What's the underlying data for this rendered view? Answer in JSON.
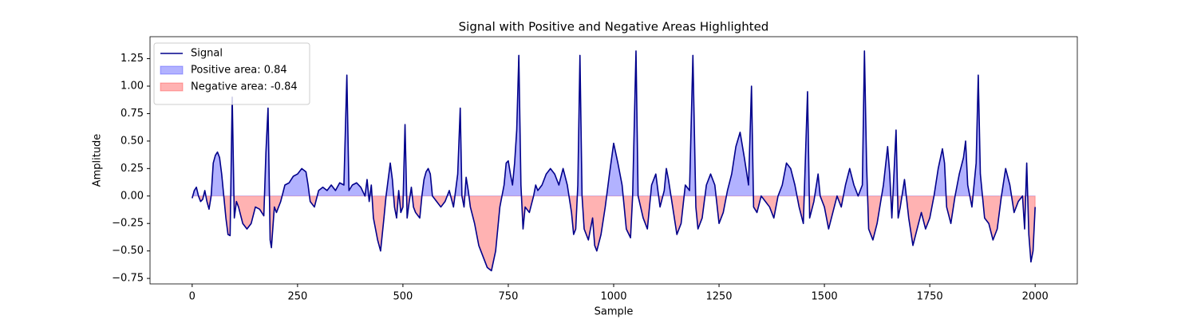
{
  "chart_data": {
    "type": "area_line",
    "title": "Signal with Positive and Negative Areas Highlighted",
    "xlabel": "Sample",
    "ylabel": "Amplitude",
    "xlim": [
      -100,
      2100
    ],
    "ylim": [
      -0.8,
      1.45
    ],
    "xticks": [
      0,
      250,
      500,
      750,
      1000,
      1250,
      1500,
      1750,
      2000
    ],
    "yticks": [
      {
        "value": -0.75,
        "label": "−0.75"
      },
      {
        "value": -0.5,
        "label": "−0.50"
      },
      {
        "value": -0.25,
        "label": "−0.25"
      },
      {
        "value": 0,
        "label": "0.00"
      },
      0.25,
      {
        "value": 0.5,
        "label": "0.50"
      },
      0.75,
      {
        "value": 1,
        "label": "1.00"
      },
      1.25
    ],
    "legend": "upper left",
    "series": [
      {
        "name": "Signal",
        "color": "#00008b",
        "x": [
          0,
          5,
          10,
          15,
          20,
          25,
          30,
          35,
          40,
          45,
          50,
          55,
          60,
          65,
          70,
          75,
          80,
          85,
          90,
          95,
          100,
          105,
          110,
          120,
          130,
          140,
          150,
          160,
          170,
          175,
          180,
          185,
          188,
          195,
          200,
          210,
          220,
          230,
          240,
          250,
          260,
          270,
          275,
          280,
          290,
          300,
          310,
          320,
          330,
          340,
          350,
          360,
          367,
          372,
          380,
          390,
          400,
          410,
          415,
          420,
          425,
          430,
          440,
          447,
          455,
          460,
          465,
          470,
          475,
          480,
          485,
          490,
          495,
          500,
          505,
          510,
          515,
          520,
          525,
          530,
          540,
          545,
          550,
          555,
          560,
          565,
          570,
          580,
          590,
          600,
          610,
          620,
          630,
          636,
          640,
          645,
          650,
          655,
          660,
          670,
          680,
          690,
          700,
          710,
          720,
          725,
          730,
          740,
          745,
          750,
          755,
          760,
          765,
          770,
          775,
          780,
          785,
          790,
          800,
          810,
          815,
          820,
          830,
          840,
          850,
          860,
          870,
          880,
          890,
          900,
          905,
          910,
          915,
          920,
          925,
          930,
          940,
          950,
          955,
          960,
          970,
          980,
          990,
          1000,
          1010,
          1020,
          1030,
          1040,
          1045,
          1053,
          1058,
          1070,
          1080,
          1090,
          1100,
          1110,
          1120,
          1125,
          1130,
          1140,
          1150,
          1160,
          1170,
          1180,
          1188,
          1195,
          1200,
          1210,
          1220,
          1230,
          1240,
          1250,
          1260,
          1270,
          1280,
          1290,
          1300,
          1310,
          1320,
          1327,
          1332,
          1340,
          1350,
          1360,
          1370,
          1380,
          1390,
          1400,
          1410,
          1420,
          1430,
          1440,
          1450,
          1460,
          1465,
          1475,
          1485,
          1490,
          1500,
          1510,
          1520,
          1530,
          1540,
          1550,
          1560,
          1570,
          1580,
          1590,
          1595,
          1600,
          1605,
          1615,
          1625,
          1640,
          1650,
          1655,
          1660,
          1670,
          1675,
          1680,
          1690,
          1700,
          1710,
          1720,
          1730,
          1740,
          1750,
          1760,
          1770,
          1780,
          1785,
          1790,
          1800,
          1810,
          1820,
          1830,
          1835,
          1840,
          1850,
          1860,
          1865,
          1870,
          1880,
          1890,
          1900,
          1910,
          1920,
          1930,
          1940,
          1950,
          1960,
          1970,
          1975,
          1980,
          1985,
          1990,
          1995,
          2000
        ],
        "values": [
          -0.02,
          0.05,
          0.08,
          0.0,
          -0.05,
          -0.03,
          0.05,
          -0.05,
          -0.12,
          0.0,
          0.3,
          0.37,
          0.4,
          0.35,
          0.2,
          0.0,
          -0.2,
          -0.35,
          -0.36,
          0.9,
          -0.2,
          -0.05,
          -0.1,
          -0.25,
          -0.3,
          -0.25,
          -0.1,
          -0.12,
          -0.18,
          0.4,
          0.8,
          -0.4,
          -0.47,
          -0.1,
          -0.15,
          -0.05,
          0.1,
          0.12,
          0.18,
          0.2,
          0.25,
          0.22,
          0.1,
          -0.05,
          -0.1,
          0.05,
          0.08,
          0.05,
          0.1,
          0.05,
          0.12,
          0.1,
          1.1,
          0.05,
          0.1,
          0.12,
          0.08,
          0.0,
          0.15,
          -0.05,
          0.1,
          -0.2,
          -0.4,
          -0.5,
          -0.2,
          0.0,
          0.15,
          0.3,
          0.15,
          -0.1,
          -0.2,
          0.05,
          -0.15,
          -0.1,
          0.65,
          -0.2,
          -0.05,
          0.08,
          -0.1,
          -0.15,
          -0.2,
          0.0,
          0.15,
          0.22,
          0.25,
          0.2,
          0.0,
          -0.05,
          -0.1,
          -0.05,
          0.05,
          -0.1,
          0.2,
          0.8,
          0.0,
          -0.1,
          0.17,
          0.05,
          -0.1,
          -0.25,
          -0.45,
          -0.55,
          -0.65,
          -0.68,
          -0.5,
          -0.3,
          -0.1,
          0.1,
          0.3,
          0.32,
          0.2,
          0.1,
          0.3,
          0.6,
          1.28,
          0.1,
          -0.3,
          -0.1,
          -0.15,
          0.0,
          0.1,
          0.05,
          0.1,
          0.2,
          0.25,
          0.2,
          0.1,
          0.25,
          0.1,
          -0.15,
          -0.35,
          -0.3,
          0.1,
          1.28,
          0.0,
          -0.3,
          -0.4,
          -0.2,
          -0.45,
          -0.5,
          -0.35,
          -0.1,
          0.2,
          0.48,
          0.3,
          0.1,
          -0.3,
          -0.38,
          0.0,
          1.32,
          0.0,
          -0.2,
          -0.3,
          0.1,
          0.2,
          -0.1,
          0.05,
          0.25,
          0.15,
          -0.1,
          -0.35,
          -0.25,
          0.1,
          0.05,
          1.28,
          -0.1,
          -0.3,
          -0.2,
          0.1,
          0.2,
          0.1,
          -0.25,
          -0.15,
          0.05,
          0.2,
          0.45,
          0.58,
          0.35,
          0.1,
          1.0,
          -0.1,
          -0.15,
          0.0,
          -0.05,
          -0.1,
          -0.2,
          0.0,
          0.1,
          0.3,
          0.25,
          0.1,
          -0.1,
          -0.25,
          0.95,
          -0.2,
          -0.05,
          0.2,
          0.0,
          -0.1,
          -0.3,
          -0.15,
          0.0,
          -0.1,
          0.1,
          0.25,
          0.1,
          0.0,
          0.1,
          1.32,
          0.3,
          -0.3,
          -0.4,
          -0.25,
          0.1,
          0.45,
          0.2,
          -0.2,
          0.6,
          -0.2,
          -0.1,
          0.15,
          -0.2,
          -0.45,
          -0.3,
          -0.15,
          -0.3,
          -0.2,
          0.0,
          0.25,
          0.43,
          0.3,
          -0.1,
          -0.25,
          0.0,
          0.2,
          0.35,
          0.5,
          0.1,
          -0.1,
          0.3,
          1.1,
          0.2,
          -0.2,
          -0.25,
          -0.4,
          -0.3,
          0.0,
          0.25,
          0.1,
          -0.15,
          -0.05,
          0.0,
          -0.3,
          0.3,
          -0.35,
          -0.6,
          -0.5,
          -0.1
        ]
      }
    ],
    "areas": [
      {
        "name": "Positive area: 0.84",
        "color": "#0000ff",
        "side": "positive"
      },
      {
        "name": "Negative area: -0.84",
        "color": "#ff0000",
        "side": "negative"
      }
    ]
  }
}
